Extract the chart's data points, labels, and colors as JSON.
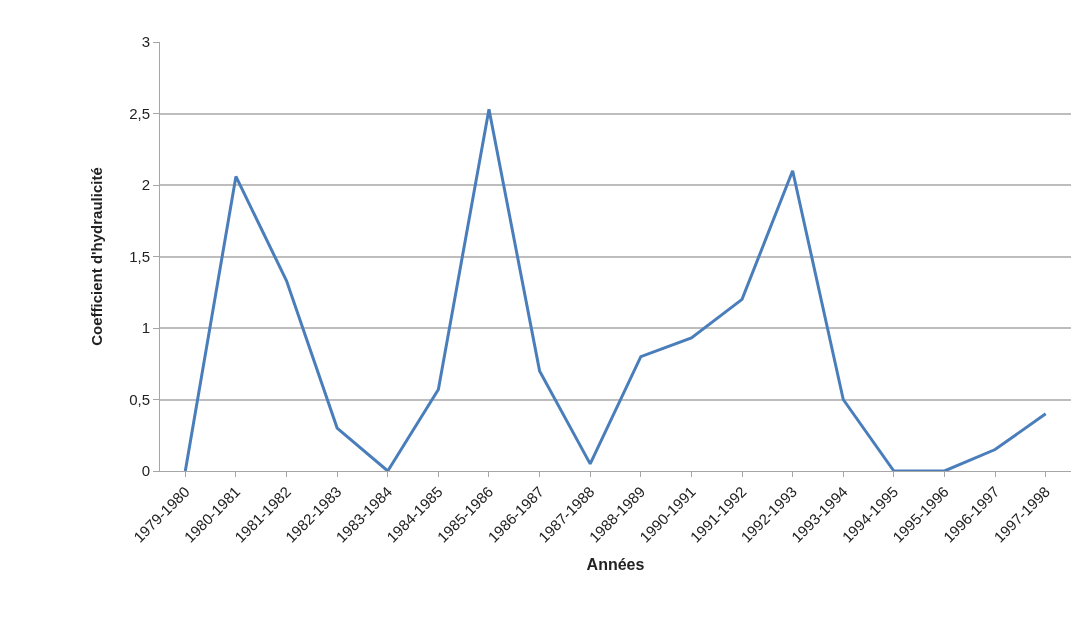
{
  "chart_data": {
    "type": "line",
    "xlabel": "Années",
    "ylabel": "Coefficient d'hydraulicité",
    "categories": [
      "1979-1980",
      "1980-1981",
      "1981-1982",
      "1982-1983",
      "1983-1984",
      "1984-1985",
      "1985-1986",
      "1986-1987",
      "1987-1988",
      "1988-1989",
      "1990-1991",
      "1991-1992",
      "1992-1993",
      "1993-1994",
      "1994-1995",
      "1995-1996",
      "1996-1997",
      "1997-1998"
    ],
    "series": [
      {
        "color": "#4a7ebb",
        "values": [
          0,
          2.06,
          1.33,
          0.3,
          0,
          0.57,
          2.53,
          0.7,
          0.05,
          0.8,
          0.93,
          1.2,
          2.1,
          0.5,
          0,
          0,
          0.15,
          0.4
        ]
      }
    ],
    "ylim": [
      0,
      3
    ],
    "yticks": [
      0,
      {
        "value": 0.5,
        "label": "0,5"
      },
      1,
      {
        "value": 1.5,
        "label": "1,5"
      },
      2,
      {
        "value": 2.5,
        "label": "2,5"
      },
      3
    ],
    "grid": "y",
    "marker": "none",
    "line_style": "solid"
  }
}
